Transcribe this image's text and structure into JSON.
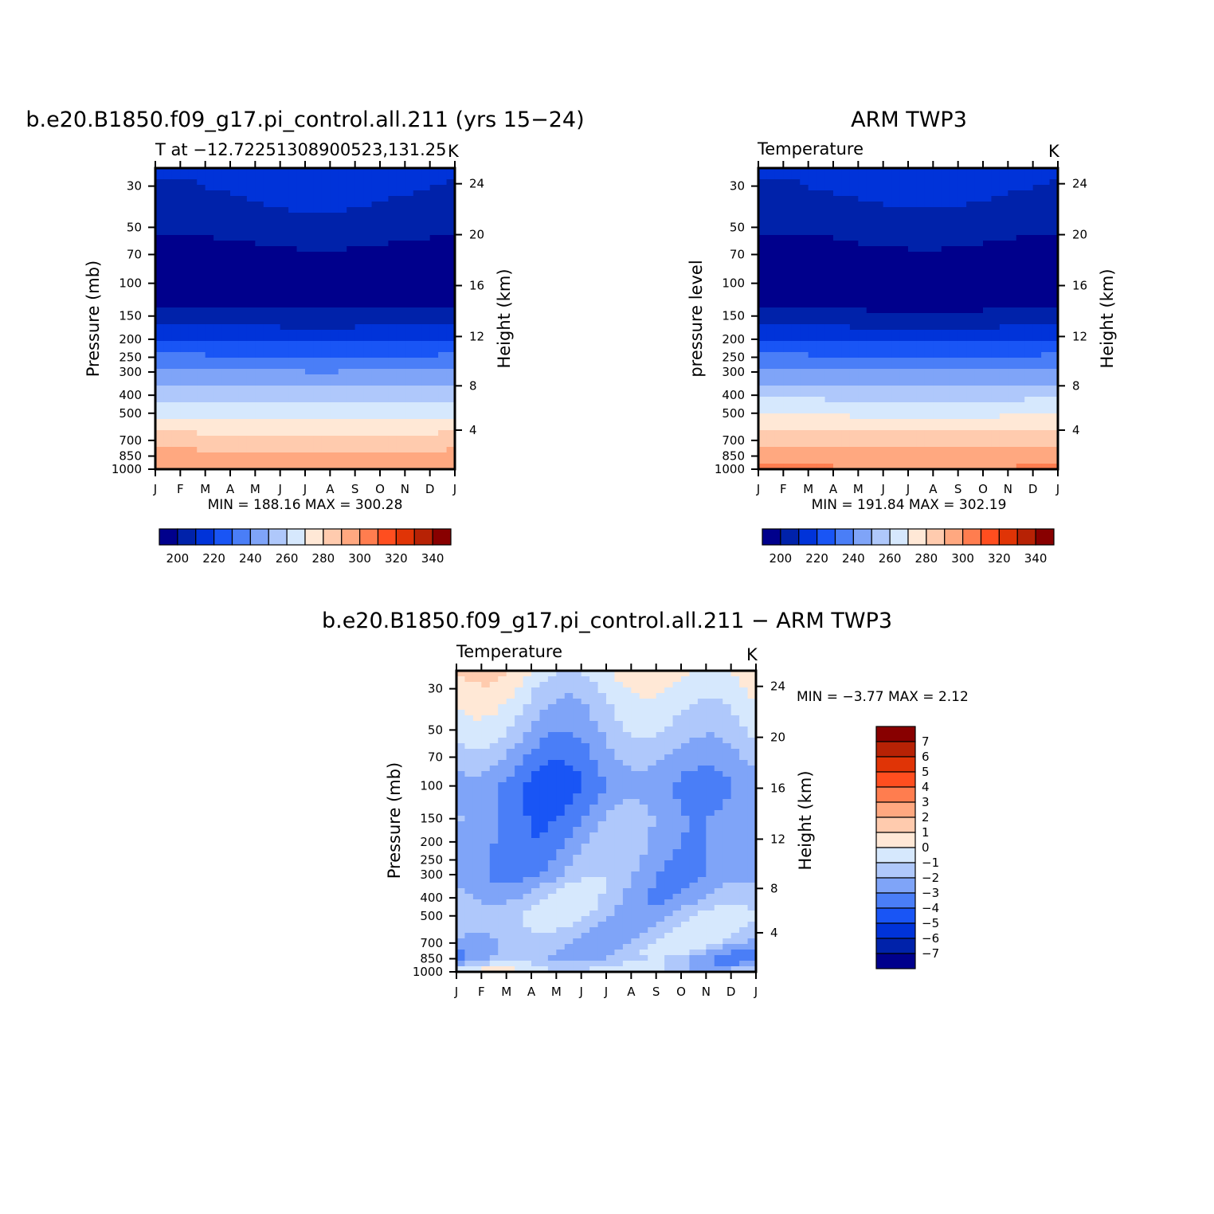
{
  "page": {
    "title_left": "b.e20.B1850.f09_g17.pi_control.all.211 (yrs 15−24)",
    "title_right": "ARM TWP3",
    "title_diff": "b.e20.B1850.f09_g17.pi_control.all.211 − ARM TWP3"
  },
  "panels": [
    {
      "id": "model",
      "subtitle": "T at −12.72251308900523,131.25",
      "units": "K",
      "ylabel": "Pressure (mb)",
      "y2label": "Height (km)",
      "minmax": "MIN = 188.16 MAX = 300.28"
    },
    {
      "id": "obs",
      "subtitle": "Temperature",
      "units": "K",
      "ylabel": "pressure level",
      "y2label": "Height (km)",
      "minmax": "MIN = 191.84 MAX = 302.19"
    },
    {
      "id": "diff",
      "subtitle": "Temperature",
      "units": "K",
      "ylabel": "Pressure (mb)",
      "y2label": "Height (km)",
      "minmax": "MIN = −3.77 MAX = 2.12"
    }
  ],
  "chart_data": [
    {
      "type": "heatmap",
      "title": "b.e20.B1850.f09_g17.pi_control.all.211 (yrs 15−24)",
      "subtitle": "T at −12.72251308900523,131.25",
      "units": "K",
      "ylabel": "Pressure (mb)",
      "y2label": "Height (km)",
      "x_ticks": [
        "J",
        "F",
        "M",
        "A",
        "M",
        "J",
        "J",
        "A",
        "S",
        "O",
        "N",
        "D",
        "J"
      ],
      "y_ticks": [
        30,
        50,
        70,
        100,
        150,
        200,
        250,
        300,
        400,
        500,
        700,
        850,
        1000
      ],
      "y2_ticks": [
        24,
        20,
        16,
        12,
        8,
        4
      ],
      "y_scale": "log",
      "ylim": [
        1000,
        24
      ],
      "contour_levels": [
        200,
        210,
        220,
        230,
        240,
        250,
        260,
        270,
        280,
        290,
        300,
        310,
        320,
        330,
        340
      ],
      "colorbar_labels": [
        "200",
        "220",
        "240",
        "260",
        "280",
        "300",
        "320",
        "340"
      ],
      "min": 188.16,
      "max": 300.28,
      "profile_shape": [
        {
          "lev": 24,
          "T": 213
        },
        {
          "lev": 30,
          "T": 212
        },
        {
          "lev": 50,
          "T": 205
        },
        {
          "lev": 70,
          "T": 196
        },
        {
          "lev": 100,
          "T": 192
        },
        {
          "lev": 150,
          "T": 203
        },
        {
          "lev": 200,
          "T": 219
        },
        {
          "lev": 250,
          "T": 231
        },
        {
          "lev": 300,
          "T": 241
        },
        {
          "lev": 400,
          "T": 256
        },
        {
          "lev": 500,
          "T": 267
        },
        {
          "lev": 700,
          "T": 284
        },
        {
          "lev": 850,
          "T": 293
        },
        {
          "lev": 1000,
          "T": 299
        }
      ]
    },
    {
      "type": "heatmap",
      "title": "ARM TWP3",
      "subtitle": "Temperature",
      "units": "K",
      "ylabel": "pressure level",
      "y2label": "Height (km)",
      "x_ticks": [
        "J",
        "F",
        "M",
        "A",
        "M",
        "J",
        "J",
        "A",
        "S",
        "O",
        "N",
        "D",
        "J"
      ],
      "y_ticks": [
        30,
        50,
        70,
        100,
        150,
        200,
        250,
        300,
        400,
        500,
        700,
        850,
        1000
      ],
      "y2_ticks": [
        24,
        20,
        16,
        12,
        8,
        4
      ],
      "y_scale": "log",
      "ylim": [
        1000,
        24
      ],
      "contour_levels": [
        200,
        210,
        220,
        230,
        240,
        250,
        260,
        270,
        280,
        290,
        300,
        310,
        320,
        330,
        340
      ],
      "colorbar_labels": [
        "200",
        "220",
        "240",
        "260",
        "280",
        "300",
        "320",
        "340"
      ],
      "min": 191.84,
      "max": 302.19,
      "profile_shape": [
        {
          "lev": 24,
          "T": 213
        },
        {
          "lev": 30,
          "T": 212
        },
        {
          "lev": 50,
          "T": 204
        },
        {
          "lev": 70,
          "T": 196
        },
        {
          "lev": 100,
          "T": 192
        },
        {
          "lev": 150,
          "T": 202
        },
        {
          "lev": 200,
          "T": 219
        },
        {
          "lev": 250,
          "T": 231
        },
        {
          "lev": 300,
          "T": 242
        },
        {
          "lev": 400,
          "T": 257
        },
        {
          "lev": 500,
          "T": 268
        },
        {
          "lev": 700,
          "T": 286
        },
        {
          "lev": 850,
          "T": 295
        },
        {
          "lev": 1000,
          "T": 301
        }
      ]
    },
    {
      "type": "heatmap",
      "title": "b.e20.B1850.f09_g17.pi_control.all.211 − ARM TWP3",
      "subtitle": "Temperature",
      "units": "K",
      "ylabel": "Pressure (mb)",
      "y2label": "Height (km)",
      "x_ticks": [
        "J",
        "F",
        "M",
        "A",
        "M",
        "J",
        "J",
        "A",
        "S",
        "O",
        "N",
        "D",
        "J"
      ],
      "y_ticks": [
        30,
        50,
        70,
        100,
        150,
        200,
        250,
        300,
        400,
        500,
        700,
        850,
        1000
      ],
      "y2_ticks": [
        24,
        20,
        16,
        12,
        8,
        4
      ],
      "y_scale": "log",
      "ylim": [
        1000,
        24
      ],
      "contour_levels": [
        -7,
        -6,
        -5,
        -4,
        -3,
        -2,
        -1,
        0,
        1,
        2,
        3,
        4,
        5,
        6,
        7
      ],
      "colorbar_labels": [
        "7",
        "6",
        "5",
        "4",
        "3",
        "2",
        "1",
        "0",
        "−1",
        "−2",
        "−3",
        "−4",
        "−5",
        "−6",
        "−7"
      ],
      "min": -3.77,
      "max": 2.12,
      "profile_shape": [
        {
          "lev": 24,
          "T": 0.3
        },
        {
          "lev": 30,
          "T": -0.4
        },
        {
          "lev": 50,
          "T": -1.5
        },
        {
          "lev": 70,
          "T": -2.4
        },
        {
          "lev": 100,
          "T": -3.3
        },
        {
          "lev": 150,
          "T": -2.7
        },
        {
          "lev": 200,
          "T": -2.6
        },
        {
          "lev": 300,
          "T": -2.5
        },
        {
          "lev": 400,
          "T": -1.8
        },
        {
          "lev": 500,
          "T": -1.2
        },
        {
          "lev": 700,
          "T": -1.6
        },
        {
          "lev": 850,
          "T": -2.2
        },
        {
          "lev": 1000,
          "T": -0.6
        }
      ]
    }
  ],
  "colors": {
    "palette": [
      "#00008C",
      "#0022AA",
      "#0033D9",
      "#1955F5",
      "#4A7EF7",
      "#7FA4F8",
      "#AFC8FB",
      "#D6E8FD",
      "#FFE8D6",
      "#FFCBAE",
      "#FFA880",
      "#FF7D4F",
      "#FF4E1F",
      "#E03406",
      "#B72205",
      "#880000"
    ]
  }
}
